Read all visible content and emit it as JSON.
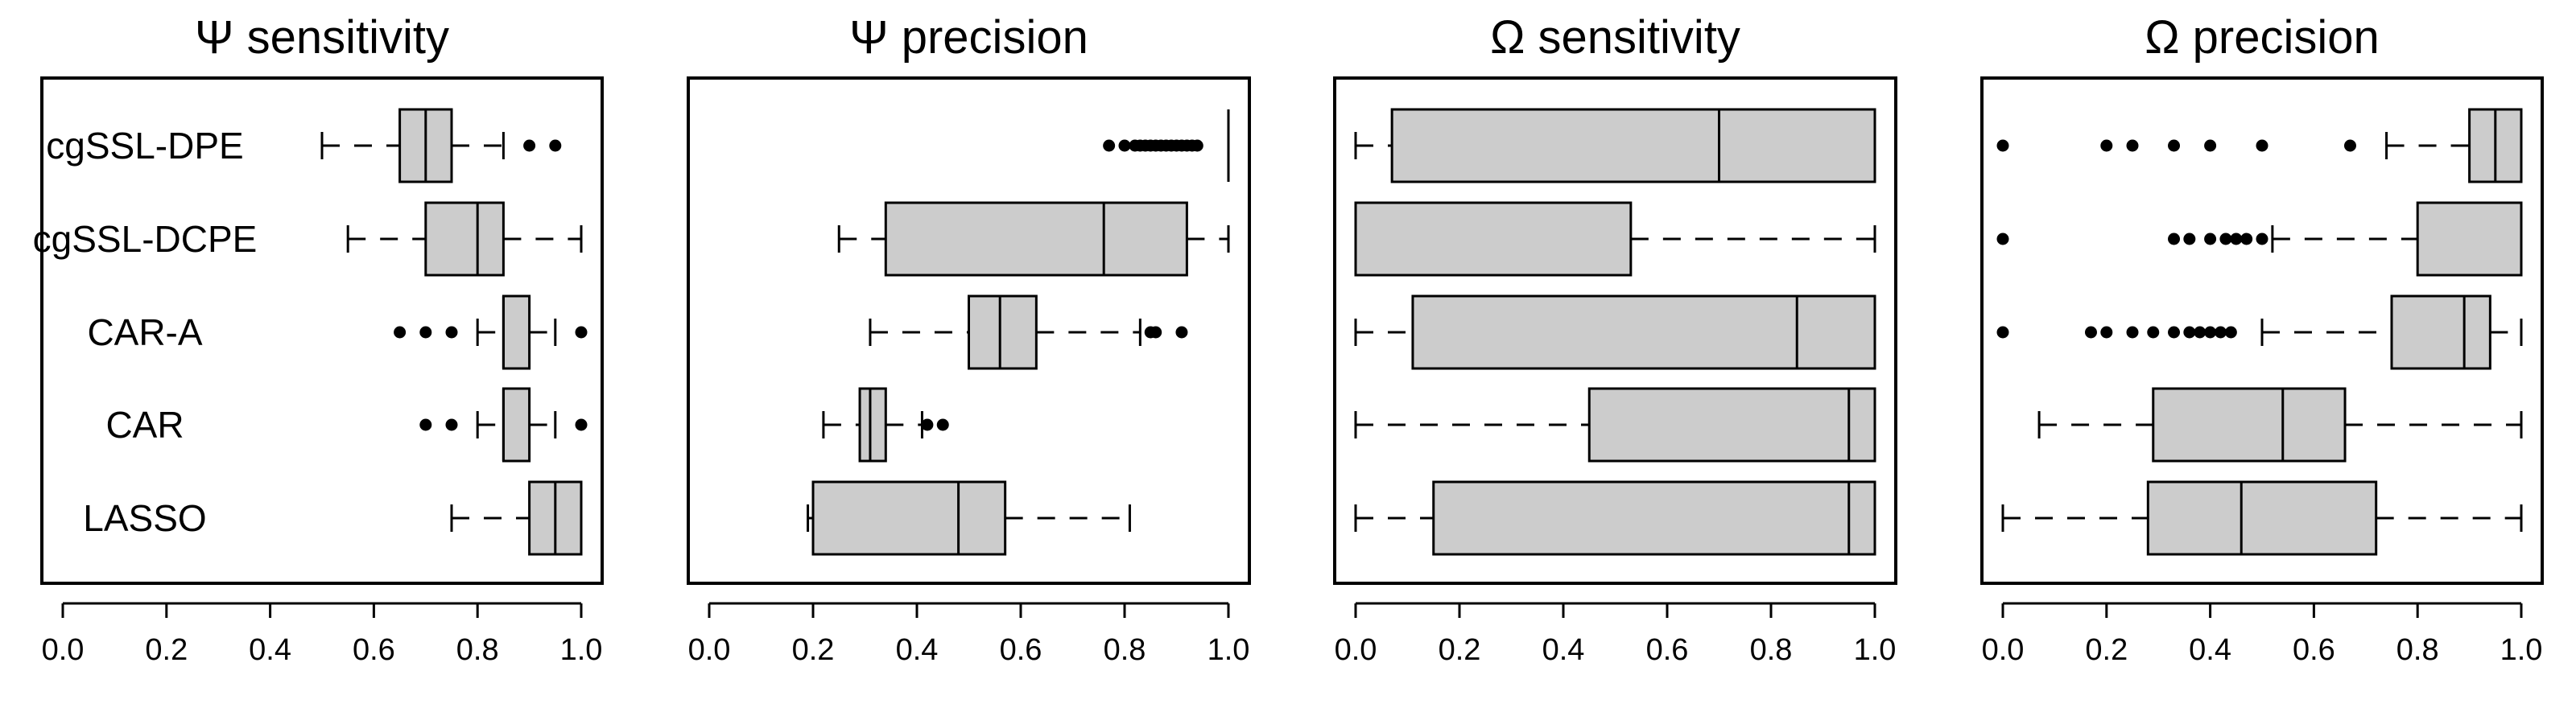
{
  "chart_data": [
    {
      "type": "boxplot",
      "title": "Ψ sensitivity",
      "xlim": [
        0,
        1
      ],
      "xticks": [
        "0.0",
        "0.2",
        "0.4",
        "0.6",
        "0.8",
        "1.0"
      ],
      "categories": [
        "cgSSL-DPE",
        "cgSSL-DCPE",
        "CAR-A",
        "CAR",
        "LASSO"
      ],
      "boxes": [
        {
          "name": "cgSSL-DPE",
          "whisker_low": 0.5,
          "q1": 0.65,
          "median": 0.7,
          "q3": 0.75,
          "whisker_high": 0.85,
          "outliers": [
            0.9,
            0.95
          ]
        },
        {
          "name": "cgSSL-DCPE",
          "whisker_low": 0.55,
          "q1": 0.7,
          "median": 0.8,
          "q3": 0.85,
          "whisker_high": 1.0,
          "outliers": []
        },
        {
          "name": "CAR-A",
          "whisker_low": 0.8,
          "q1": 0.85,
          "median": 0.85,
          "q3": 0.9,
          "whisker_high": 0.95,
          "outliers": [
            0.65,
            0.7,
            0.75,
            1.0
          ]
        },
        {
          "name": "CAR",
          "whisker_low": 0.8,
          "q1": 0.85,
          "median": 0.85,
          "q3": 0.9,
          "whisker_high": 0.95,
          "outliers": [
            0.7,
            0.75,
            1.0
          ]
        },
        {
          "name": "LASSO",
          "whisker_low": 0.75,
          "q1": 0.9,
          "median": 0.95,
          "q3": 1.0,
          "whisker_high": 1.0,
          "outliers": []
        }
      ]
    },
    {
      "type": "boxplot",
      "title": "Ψ precision",
      "xlim": [
        0,
        1
      ],
      "xticks": [
        "0.0",
        "0.2",
        "0.4",
        "0.6",
        "0.8",
        "1.0"
      ],
      "categories": [
        "cgSSL-DPE",
        "cgSSL-DCPE",
        "CAR-A",
        "CAR",
        "LASSO"
      ],
      "boxes": [
        {
          "name": "cgSSL-DPE",
          "whisker_low": 1.0,
          "q1": 1.0,
          "median": 1.0,
          "q3": 1.0,
          "whisker_high": 1.0,
          "outliers": [
            0.77,
            0.8,
            0.82,
            0.83,
            0.84,
            0.85,
            0.86,
            0.87,
            0.88,
            0.89,
            0.9,
            0.91,
            0.92,
            0.93,
            0.94
          ]
        },
        {
          "name": "cgSSL-DCPE",
          "whisker_low": 0.25,
          "q1": 0.34,
          "median": 0.76,
          "q3": 0.92,
          "whisker_high": 1.0,
          "outliers": []
        },
        {
          "name": "CAR-A",
          "whisker_low": 0.31,
          "q1": 0.5,
          "median": 0.56,
          "q3": 0.63,
          "whisker_high": 0.83,
          "outliers": [
            0.85,
            0.86,
            0.91
          ]
        },
        {
          "name": "CAR",
          "whisker_low": 0.22,
          "q1": 0.29,
          "median": 0.31,
          "q3": 0.34,
          "whisker_high": 0.41,
          "outliers": [
            0.42,
            0.45
          ]
        },
        {
          "name": "LASSO",
          "whisker_low": 0.19,
          "q1": 0.2,
          "median": 0.48,
          "q3": 0.57,
          "whisker_high": 0.81,
          "outliers": []
        }
      ]
    },
    {
      "type": "boxplot",
      "title": "Ω sensitivity",
      "xlim": [
        0,
        1
      ],
      "xticks": [
        "0.0",
        "0.2",
        "0.4",
        "0.6",
        "0.8",
        "1.0"
      ],
      "categories": [
        "cgSSL-DPE",
        "cgSSL-DCPE",
        "CAR-A",
        "CAR",
        "LASSO"
      ],
      "boxes": [
        {
          "name": "cgSSL-DPE",
          "whisker_low": 0.0,
          "q1": 0.07,
          "median": 0.7,
          "q3": 1.0,
          "whisker_high": 1.0,
          "outliers": []
        },
        {
          "name": "cgSSL-DCPE",
          "whisker_low": 0.0,
          "q1": 0.0,
          "median": 0.0,
          "q3": 0.53,
          "whisker_high": 1.0,
          "outliers": []
        },
        {
          "name": "CAR-A",
          "whisker_low": 0.0,
          "q1": 0.11,
          "median": 0.85,
          "q3": 1.0,
          "whisker_high": 1.0,
          "outliers": []
        },
        {
          "name": "CAR",
          "whisker_low": 0.0,
          "q1": 0.45,
          "median": 0.95,
          "q3": 1.0,
          "whisker_high": 1.0,
          "outliers": []
        },
        {
          "name": "LASSO",
          "whisker_low": 0.0,
          "q1": 0.15,
          "median": 0.95,
          "q3": 1.0,
          "whisker_high": 1.0,
          "outliers": []
        }
      ]
    },
    {
      "type": "boxplot",
      "title": "Ω precision",
      "xlim": [
        0,
        1
      ],
      "xticks": [
        "0.0",
        "0.2",
        "0.4",
        "0.6",
        "0.8",
        "1.0"
      ],
      "categories": [
        "cgSSL-DPE",
        "cgSSL-DCPE",
        "CAR-A",
        "CAR",
        "LASSO"
      ],
      "boxes": [
        {
          "name": "cgSSL-DPE",
          "whisker_low": 0.74,
          "q1": 0.9,
          "median": 0.95,
          "q3": 1.0,
          "whisker_high": 1.0,
          "outliers": [
            0.0,
            0.2,
            0.25,
            0.33,
            0.4,
            0.5,
            0.67
          ]
        },
        {
          "name": "cgSSL-DCPE",
          "whisker_low": 0.52,
          "q1": 0.8,
          "median": 1.0,
          "q3": 1.0,
          "whisker_high": 1.0,
          "outliers": [
            0.0,
            0.33,
            0.36,
            0.4,
            0.43,
            0.45,
            0.47,
            0.5
          ]
        },
        {
          "name": "CAR-A",
          "whisker_low": 0.5,
          "q1": 0.75,
          "median": 0.89,
          "q3": 0.94,
          "whisker_high": 1.0,
          "outliers": [
            0.0,
            0.17,
            0.2,
            0.25,
            0.29,
            0.33,
            0.36,
            0.38,
            0.4,
            0.42,
            0.44
          ]
        },
        {
          "name": "CAR",
          "whisker_low": 0.07,
          "q1": 0.29,
          "median": 0.54,
          "q3": 0.66,
          "whisker_high": 1.0,
          "outliers": []
        },
        {
          "name": "LASSO",
          "whisker_low": 0.0,
          "q1": 0.28,
          "median": 0.46,
          "q3": 0.72,
          "whisker_high": 1.0,
          "outliers": []
        }
      ]
    }
  ],
  "style": {
    "box_fill": "#cccccc",
    "stroke": "#000000",
    "background": "#ffffff"
  }
}
